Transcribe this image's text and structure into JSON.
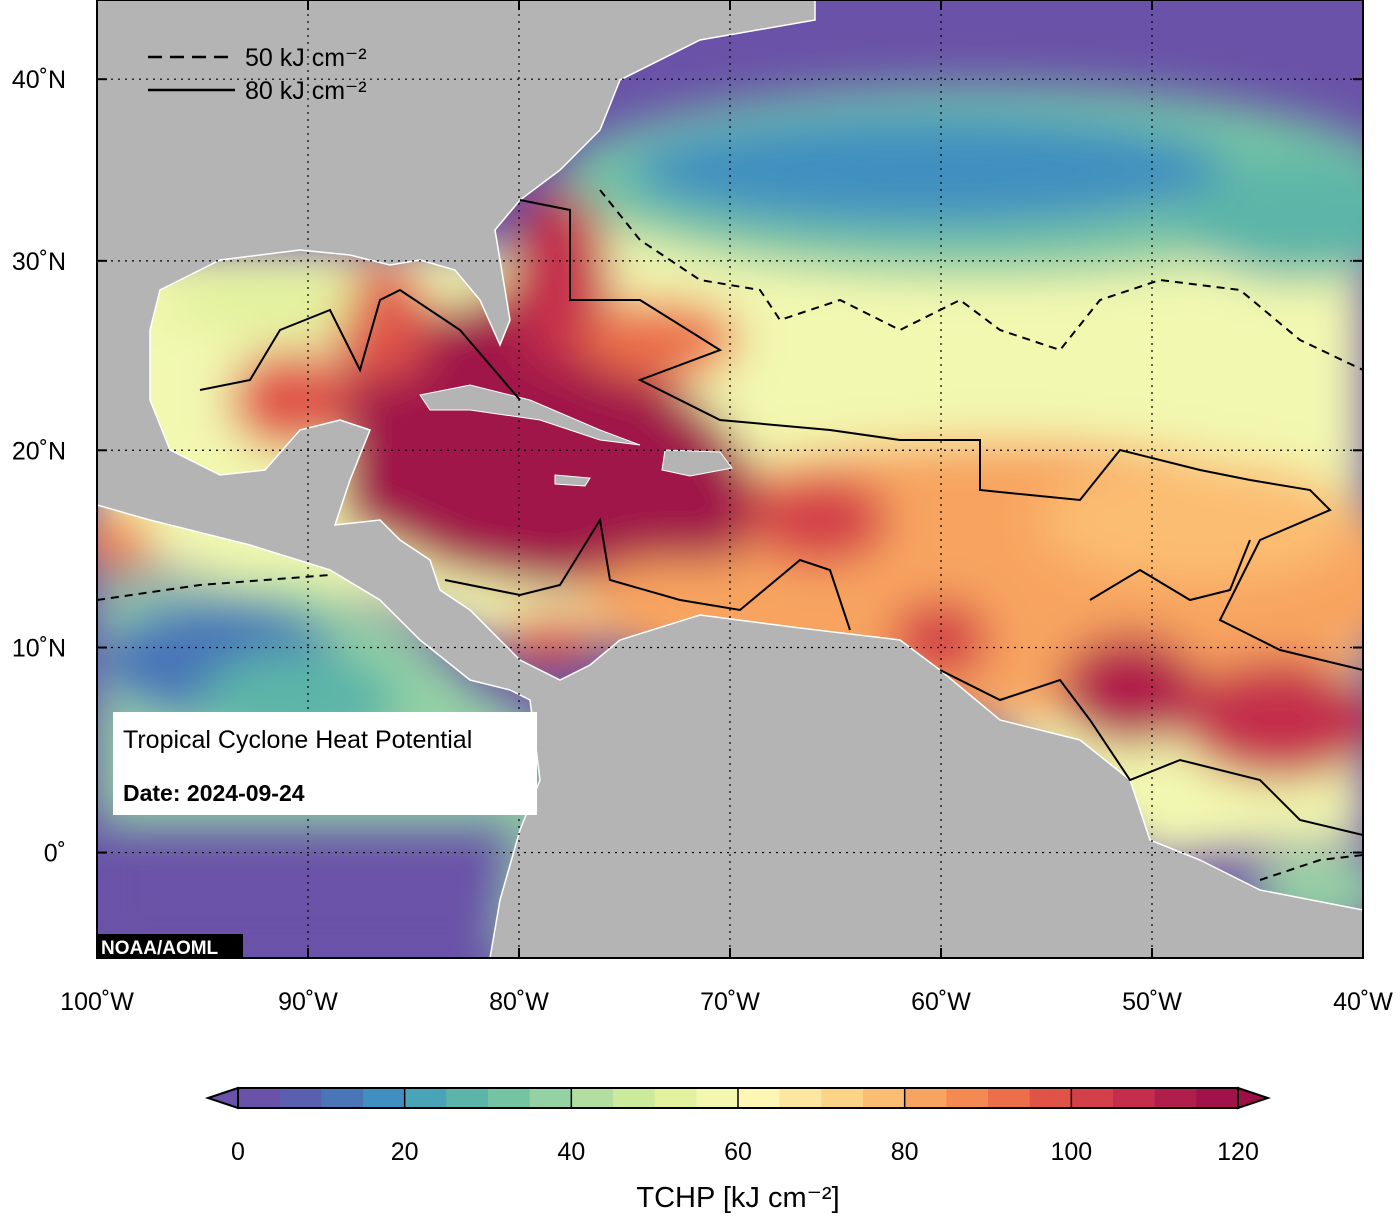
{
  "chart_data": {
    "type": "map",
    "xlim": [
      -100,
      -40
    ],
    "ylim": [
      -5,
      44.5
    ],
    "xticks": [
      {
        "value": -100,
        "label": "100˚W"
      },
      {
        "value": -90,
        "label": "90˚W"
      },
      {
        "value": -80,
        "label": "80˚W"
      },
      {
        "value": -70,
        "label": "70˚W"
      },
      {
        "value": -60,
        "label": "60˚W"
      },
      {
        "value": -50,
        "label": "50˚W"
      },
      {
        "value": -40,
        "label": "40˚W"
      }
    ],
    "yticks": [
      {
        "value": 0,
        "label": "0˚"
      },
      {
        "value": 10,
        "label": "10˚N"
      },
      {
        "value": 20,
        "label": "20˚N"
      },
      {
        "value": 30,
        "label": "30˚N"
      },
      {
        "value": 40,
        "label": "40˚N"
      }
    ],
    "grid": true,
    "legend": [
      {
        "name": "50 kJ cm⁻²",
        "style": "dashed"
      },
      {
        "name": "80 kJ cm⁻²",
        "style": "solid"
      }
    ],
    "title": "Tropical Cyclone Heat Potential",
    "date": "Date: 2024-09-24",
    "credit": "NOAA/AOML",
    "colorbar": {
      "label": "TCHP [kJ cm⁻²]",
      "lim": [
        0,
        120
      ],
      "ticks": [
        0,
        20,
        40,
        60,
        80,
        100,
        120
      ],
      "under_color": "#6a52a8",
      "over_color": "#9e0e46",
      "colors": [
        "#6a52a8",
        "#5a5fb0",
        "#4a76b8",
        "#3f8fc0",
        "#4aa4b8",
        "#5cb5a8",
        "#74c4a4",
        "#94d2a4",
        "#b2dea2",
        "#ccea9e",
        "#e2f29e",
        "#f2f8b0",
        "#fdf6b4",
        "#fde6a0",
        "#fcd488",
        "#fbbd72",
        "#f8a460",
        "#f48a52",
        "#ec6e4a",
        "#e05448",
        "#d4404a",
        "#c42e4c",
        "#b01e4c",
        "#a01248"
      ]
    }
  }
}
